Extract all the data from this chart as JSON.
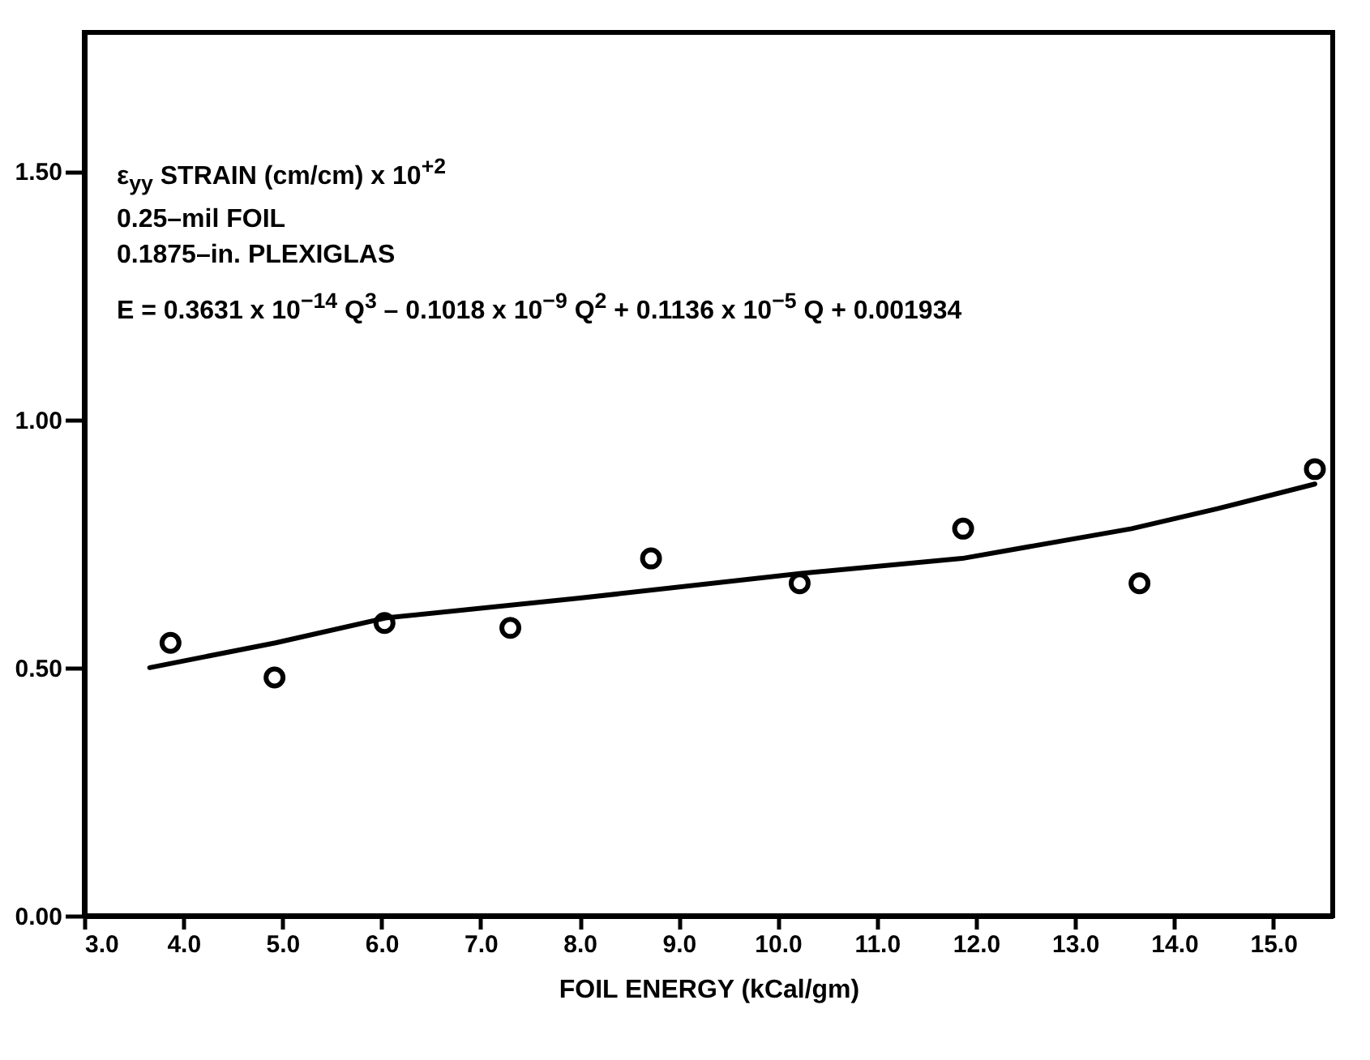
{
  "chart_data": {
    "type": "scatter",
    "xlabel": "FOIL ENERGY (kCal/gm)",
    "annotations": [
      "ε$_{yy}$ STRAIN (cm/cm) x 10$^{+2}$",
      "0.25–mil FOIL",
      "0.1875–in. PLEXIGLAS",
      "E = 0.3631 x 10$^{−14}$ Q$^{3}$ – 0.1018 x 10$^{−9}$ Q$^{2}$ + 0.1136 x 10$^{−5}$ Q + 0.001934"
    ],
    "xlim": [
      3.0,
      15.6
    ],
    "ylim": [
      0,
      1.78
    ],
    "xticks": [
      {
        "value": 3,
        "label": "3.0"
      },
      {
        "value": 4,
        "label": "4.0"
      },
      {
        "value": 5,
        "label": "5.0"
      },
      {
        "value": 6,
        "label": "6.0"
      },
      {
        "value": 7,
        "label": "7.0"
      },
      {
        "value": 8,
        "label": "8.0"
      },
      {
        "value": 9,
        "label": "9.0"
      },
      {
        "value": 10,
        "label": "10.0"
      },
      {
        "value": 11,
        "label": "11.0"
      },
      {
        "value": 12,
        "label": "12.0"
      },
      {
        "value": 13,
        "label": "13.0"
      },
      {
        "value": 14,
        "label": "14.0"
      },
      {
        "value": 15,
        "label": "15.0"
      }
    ],
    "yticks": [
      {
        "value": 0,
        "label": "0.00"
      },
      {
        "value": 0.5,
        "label": "0.50"
      },
      {
        "value": 1,
        "label": "1.00"
      },
      {
        "value": 1.5,
        "label": "1.50"
      }
    ],
    "series": [
      {
        "type": "scatter",
        "marker": "circle",
        "color": "#000000",
        "x": [
          3.87,
          4.92,
          6.03,
          7.3,
          8.72,
          10.22,
          11.87,
          13.65,
          15.42
        ],
        "values": [
          0.55,
          0.48,
          0.59,
          0.58,
          0.72,
          0.67,
          0.78,
          0.67,
          0.9
        ]
      },
      {
        "type": "line",
        "color": "#000000",
        "line_style": "solid",
        "x": [
          3.66,
          4.93,
          6.04,
          8.0,
          10.24,
          11.86,
          13.57,
          14.43,
          15.42
        ],
        "values": [
          0.5,
          0.55,
          0.6,
          0.64,
          0.69,
          0.72,
          0.78,
          0.82,
          0.87
        ]
      }
    ]
  }
}
